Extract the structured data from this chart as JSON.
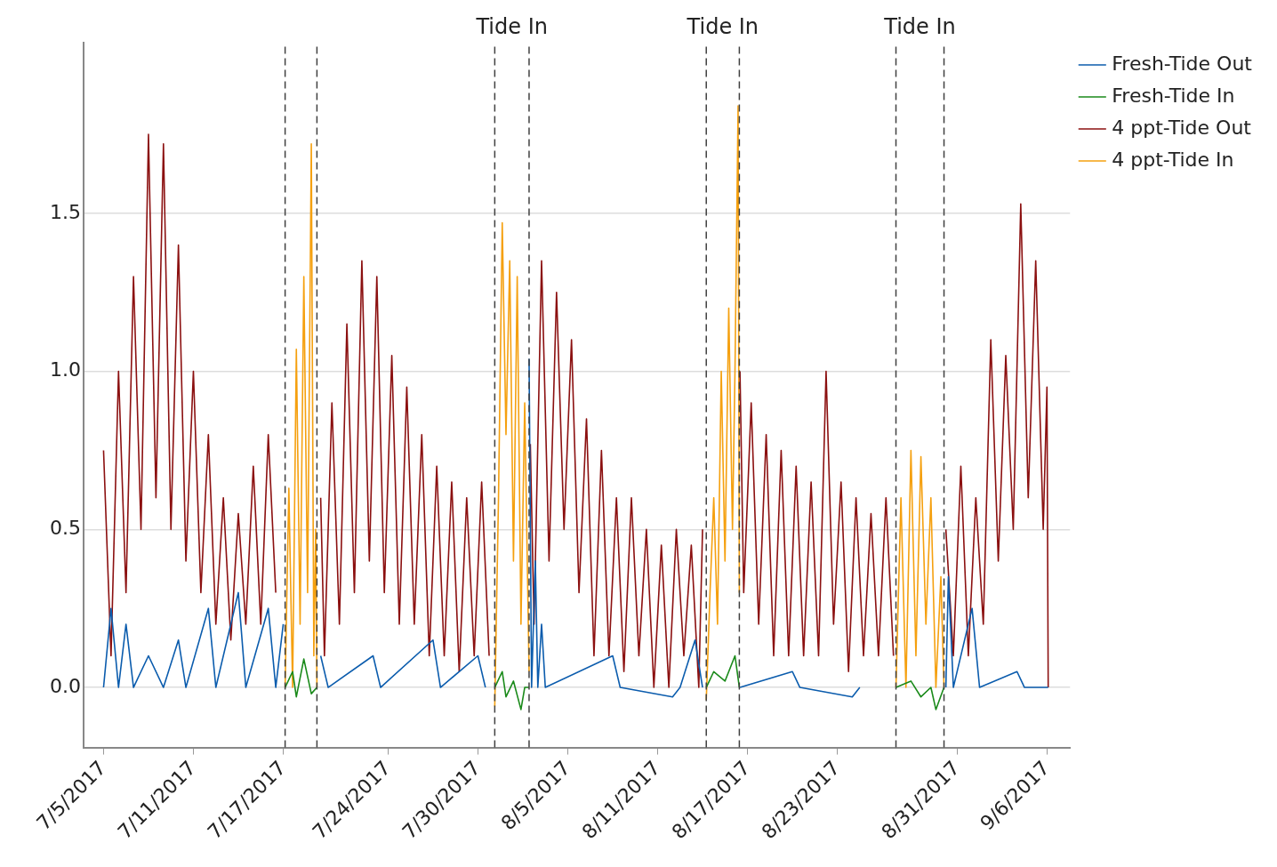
{
  "chart_data": {
    "type": "line",
    "xlim": [
      "2017-07-03T16:00",
      "2017-09-07T13:00"
    ],
    "xticks": [
      {
        "value": "2017-07-05",
        "label": "7/5/2017"
      },
      {
        "value": "2017-07-11",
        "label": "7/11/2017"
      },
      {
        "value": "2017-07-17",
        "label": "7/17/2017"
      },
      {
        "value": "2017-07-24",
        "label": "7/24/2017"
      },
      {
        "value": "2017-07-30",
        "label": "7/30/2017"
      },
      {
        "value": "2017-08-05",
        "label": "8/5/2017"
      },
      {
        "value": "2017-08-11",
        "label": "8/11/2017"
      },
      {
        "value": "2017-08-17",
        "label": "8/17/2017"
      },
      {
        "value": "2017-08-23",
        "label": "8/23/2017"
      },
      {
        "value": "2017-08-31",
        "label": "8/31/2017"
      },
      {
        "value": "2017-09-06",
        "label": "9/6/2017"
      }
    ],
    "ylim": [
      -0.19,
      2.04
    ],
    "yticks": [
      {
        "value": 0,
        "label": "0.0"
      },
      {
        "value": 0.5,
        "label": "0.5"
      },
      {
        "value": 1,
        "label": "1.0"
      },
      {
        "value": 1.5,
        "label": "1.5"
      }
    ],
    "grid": "y",
    "legend": "top right",
    "marker": "none",
    "line_style": "solid",
    "ref_lines": [
      {
        "axis": "x",
        "value": "2017-07-17T03:00",
        "color": "#404040",
        "line_style": "dashed"
      },
      {
        "axis": "x",
        "value": "2017-07-19T06:00",
        "color": "#404040",
        "line_style": "dashed"
      },
      {
        "axis": "x",
        "value": "2017-07-31T03:00",
        "color": "#404040",
        "line_style": "dashed"
      },
      {
        "axis": "x",
        "value": "2017-08-02T10:00",
        "color": "#404040",
        "line_style": "dashed"
      },
      {
        "axis": "x",
        "value": "2017-08-14T06:00",
        "color": "#404040",
        "line_style": "dashed"
      },
      {
        "axis": "x",
        "value": "2017-08-16T11:00",
        "color": "#404040",
        "line_style": "dashed"
      },
      {
        "axis": "x",
        "value": "2017-08-26T22:00",
        "color": "#404040",
        "line_style": "dashed"
      },
      {
        "axis": "x",
        "value": "2017-08-30T03:00",
        "color": "#404040",
        "line_style": "dashed"
      }
    ],
    "annotations": [
      "Tide In",
      "Tide In",
      "Tide In"
    ],
    "series": [
      {
        "name": "Fresh-Tide Out",
        "color": "#0b5cad",
        "x": [
          "2017-07-05",
          "2017-07-05T12:00",
          "2017-07-06",
          "2017-07-06T12:00",
          "2017-07-07",
          "2017-07-08",
          "2017-07-09",
          "2017-07-10",
          "2017-07-10T12:00",
          "2017-07-12",
          "2017-07-12T12:00",
          "2017-07-14",
          "2017-07-14T12:00",
          "2017-07-16",
          "2017-07-16T12:00",
          "2017-07-17",
          "2017-07-18",
          "2017-07-19T12:00",
          "2017-07-20",
          "2017-07-23",
          "2017-07-23T12:00",
          "2017-07-27",
          "2017-07-27T12:00",
          "2017-07-30",
          "2017-07-30T12:00",
          "2017-08-01",
          "2017-08-02T10:00",
          "2017-08-02T14:00",
          "2017-08-02T20:00",
          "2017-08-03",
          "2017-08-03T06:00",
          "2017-08-03T12:00",
          "2017-08-08",
          "2017-08-08T12:00",
          "2017-08-12",
          "2017-08-12T12:00",
          "2017-08-13T12:00",
          "2017-08-14",
          "2017-08-15",
          "2017-08-16T12:00",
          "2017-08-20",
          "2017-08-20T12:00",
          "2017-08-24",
          "2017-08-24T12:00",
          "2017-08-28",
          "2017-08-30T06:00",
          "2017-08-30T10:00",
          "2017-08-30T18:00",
          "2017-09-01",
          "2017-09-01T12:00",
          "2017-09-04",
          "2017-09-04T12:00",
          "2017-09-06T02:00"
        ],
        "values": [
          0,
          0.25,
          0,
          0.2,
          0,
          0.1,
          0,
          0.15,
          0,
          0.25,
          0,
          0.3,
          0,
          0.25,
          0,
          0.2,
          null,
          0.1,
          0,
          0.1,
          0,
          0.15,
          0,
          0.1,
          0,
          null,
          1.04,
          0,
          0.4,
          0,
          0.2,
          0,
          0.1,
          0,
          -0.03,
          0,
          0.15,
          0,
          null,
          0,
          0.05,
          0,
          -0.03,
          0,
          null,
          0,
          0.35,
          0,
          0.25,
          0,
          0.05,
          0,
          0
        ]
      },
      {
        "name": "Fresh-Tide In",
        "color": "#1a8a1a",
        "x": [
          "2017-07-17T03:00",
          "2017-07-17T15:00",
          "2017-07-17T21:00",
          "2017-07-18T09:00",
          "2017-07-18T21:00",
          "2017-07-19T06:00",
          "2017-07-25",
          "2017-07-31T03:00",
          "2017-07-31T15:00",
          "2017-07-31T21:00",
          "2017-08-01T09:00",
          "2017-08-01T21:00",
          "2017-08-02T03:00",
          "2017-08-02T10:00",
          "2017-08-08",
          "2017-08-14T06:00",
          "2017-08-14T18:00",
          "2017-08-15T12:00",
          "2017-08-16T04:00",
          "2017-08-16T11:00",
          "2017-08-20",
          "2017-08-26T22:00",
          "2017-08-27T22:00",
          "2017-08-28T14:00",
          "2017-08-29T06:00",
          "2017-08-29T14:00",
          "2017-08-30T03:00"
        ],
        "values": [
          0,
          0.05,
          -0.03,
          0.09,
          -0.02,
          0,
          null,
          0,
          0.05,
          -0.03,
          0.02,
          -0.07,
          0,
          0,
          null,
          0,
          0.05,
          0.02,
          0.1,
          0,
          null,
          0,
          0.02,
          -0.03,
          0,
          -0.07,
          0
        ]
      },
      {
        "name": "4 ppt-Tide Out",
        "color": "#8b1010",
        "x": [
          "2017-07-05T00:00",
          "2017-07-05T12:00",
          "2017-07-06T00:00",
          "2017-07-06T12:00",
          "2017-07-07T00:00",
          "2017-07-07T12:00",
          "2017-07-08T00:00",
          "2017-07-08T12:00",
          "2017-07-09T00:00",
          "2017-07-09T12:00",
          "2017-07-10T00:00",
          "2017-07-10T12:00",
          "2017-07-11T00:00",
          "2017-07-11T12:00",
          "2017-07-12T00:00",
          "2017-07-12T12:00",
          "2017-07-13T00:00",
          "2017-07-13T12:00",
          "2017-07-14T00:00",
          "2017-07-14T12:00",
          "2017-07-15T00:00",
          "2017-07-15T12:00",
          "2017-07-16T00:00",
          "2017-07-16T12:00",
          "2017-07-18",
          "2017-07-19T12:00",
          "2017-07-19T18:00",
          "2017-07-20T06:00",
          "2017-07-20T18:00",
          "2017-07-21T06:00",
          "2017-07-21T18:00",
          "2017-07-22T06:00",
          "2017-07-22T18:00",
          "2017-07-23T06:00",
          "2017-07-23T18:00",
          "2017-07-24T06:00",
          "2017-07-24T18:00",
          "2017-07-25T06:00",
          "2017-07-25T18:00",
          "2017-07-26T06:00",
          "2017-07-26T18:00",
          "2017-07-27T06:00",
          "2017-07-27T18:00",
          "2017-07-28T06:00",
          "2017-07-28T18:00",
          "2017-07-29T06:00",
          "2017-07-29T18:00",
          "2017-07-30T06:00",
          "2017-07-30T18:00",
          "2017-08-01",
          "2017-08-02T12:00",
          "2017-08-02T18:00",
          "2017-08-03T06:00",
          "2017-08-03T18:00",
          "2017-08-04T06:00",
          "2017-08-04T18:00",
          "2017-08-05T06:00",
          "2017-08-05T18:00",
          "2017-08-06T06:00",
          "2017-08-06T18:00",
          "2017-08-07T06:00",
          "2017-08-07T18:00",
          "2017-08-08T06:00",
          "2017-08-08T18:00",
          "2017-08-09T06:00",
          "2017-08-09T18:00",
          "2017-08-10T06:00",
          "2017-08-10T18:00",
          "2017-08-11T06:00",
          "2017-08-11T18:00",
          "2017-08-12T06:00",
          "2017-08-12T18:00",
          "2017-08-13T06:00",
          "2017-08-13T18:00",
          "2017-08-14T00:00",
          "2017-08-15",
          "2017-08-16T12:00",
          "2017-08-16T18:00",
          "2017-08-17T06:00",
          "2017-08-17T18:00",
          "2017-08-18T06:00",
          "2017-08-18T18:00",
          "2017-08-19T06:00",
          "2017-08-19T18:00",
          "2017-08-20T06:00",
          "2017-08-20T18:00",
          "2017-08-21T06:00",
          "2017-08-21T18:00",
          "2017-08-22T06:00",
          "2017-08-22T18:00",
          "2017-08-23T06:00",
          "2017-08-23T18:00",
          "2017-08-24T06:00",
          "2017-08-24T18:00",
          "2017-08-25T06:00",
          "2017-08-25T18:00",
          "2017-08-26T06:00",
          "2017-08-26T18:00",
          "2017-08-28",
          "2017-08-30T06:00",
          "2017-08-30T18:00",
          "2017-08-31T06:00",
          "2017-08-31T18:00",
          "2017-09-01T06:00",
          "2017-09-01T18:00",
          "2017-09-02T06:00",
          "2017-09-02T18:00",
          "2017-09-03T06:00",
          "2017-09-03T18:00",
          "2017-09-04T06:00",
          "2017-09-04T18:00",
          "2017-09-05T06:00",
          "2017-09-05T18:00",
          "2017-09-06T00:00",
          "2017-09-06T02:00"
        ],
        "values": [
          0.75,
          0.1,
          1,
          0.3,
          1.3,
          0.5,
          1.75,
          0.6,
          1.72,
          0.5,
          1.4,
          0.4,
          1,
          0.3,
          0.8,
          0.2,
          0.6,
          0.15,
          0.55,
          0.2,
          0.7,
          0.2,
          0.8,
          0.3,
          null,
          0.6,
          0.1,
          0.9,
          0.2,
          1.15,
          0.3,
          1.35,
          0.4,
          1.3,
          0.3,
          1.05,
          0.2,
          0.95,
          0.2,
          0.8,
          0.1,
          0.7,
          0.1,
          0.65,
          0.05,
          0.6,
          0.1,
          0.65,
          0.1,
          null,
          0.77,
          0.2,
          1.35,
          0.4,
          1.25,
          0.5,
          1.1,
          0.3,
          0.85,
          0.1,
          0.75,
          0.1,
          0.6,
          0.05,
          0.6,
          0.1,
          0.5,
          0,
          0.45,
          0,
          0.5,
          0.1,
          0.45,
          0,
          0.5,
          null,
          1,
          0.3,
          0.9,
          0.2,
          0.8,
          0.1,
          0.75,
          0.1,
          0.7,
          0.1,
          0.65,
          0.1,
          1,
          0.2,
          0.65,
          0.05,
          0.6,
          0.1,
          0.55,
          0.1,
          0.6,
          0.1,
          null,
          0.5,
          0.1,
          0.7,
          0.1,
          0.6,
          0.2,
          1.1,
          0.4,
          1.05,
          0.5,
          1.53,
          0.6,
          1.35,
          0.5,
          0.95,
          0
        ]
      },
      {
        "name": "4 ppt-Tide In",
        "color": "#f5a00f",
        "x": [
          "2017-07-17T03:00",
          "2017-07-17T09:00",
          "2017-07-17T15:00",
          "2017-07-17T21:00",
          "2017-07-18T03:00",
          "2017-07-18T09:00",
          "2017-07-18T15:00",
          "2017-07-18T21:00",
          "2017-07-19T01:00",
          "2017-07-19T04:00",
          "2017-07-19T06:00",
          "2017-07-25",
          "2017-07-31T03:00",
          "2017-07-31T09:00",
          "2017-07-31T15:00",
          "2017-07-31T21:00",
          "2017-08-01T03:00",
          "2017-08-01T09:00",
          "2017-08-01T15:00",
          "2017-08-01T21:00",
          "2017-08-02T03:00",
          "2017-08-02T10:00",
          "2017-08-08",
          "2017-08-14T06:00",
          "2017-08-14T12:00",
          "2017-08-14T18:00",
          "2017-08-15T00:00",
          "2017-08-15T06:00",
          "2017-08-15T12:00",
          "2017-08-15T18:00",
          "2017-08-16T00:00",
          "2017-08-16T04:00",
          "2017-08-16T09:00",
          "2017-08-16T11:00",
          "2017-08-20",
          "2017-08-26T22:00",
          "2017-08-27T06:00",
          "2017-08-27T14:00",
          "2017-08-27T22:00",
          "2017-08-28T06:00",
          "2017-08-28T14:00",
          "2017-08-28T22:00",
          "2017-08-29T06:00",
          "2017-08-29T14:00",
          "2017-08-29T22:00",
          "2017-08-30T03:00"
        ],
        "values": [
          0,
          0.63,
          0,
          1.07,
          0.2,
          1.3,
          0.3,
          1.72,
          0.1,
          0.5,
          0,
          null,
          -0.06,
          0.6,
          1.47,
          0.8,
          1.35,
          0.4,
          1.3,
          0.2,
          0.9,
          0.05,
          null,
          -0.04,
          0.3,
          0.6,
          0.2,
          1,
          0.4,
          1.2,
          0.5,
          1,
          1.84,
          0.3,
          null,
          0,
          0.6,
          0,
          0.75,
          0.1,
          0.73,
          0.2,
          0.6,
          0,
          0.35,
          0
        ]
      }
    ]
  }
}
